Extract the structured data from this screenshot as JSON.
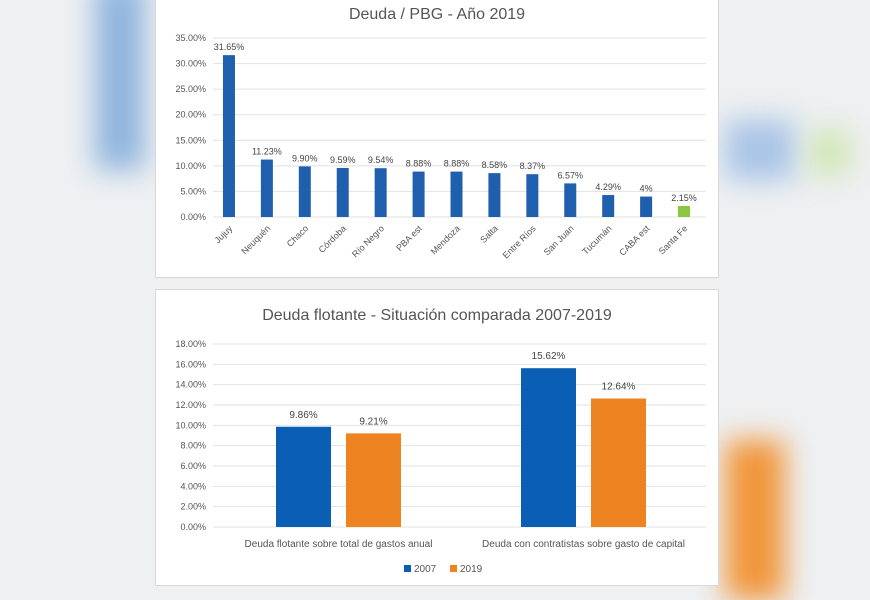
{
  "chart_data": [
    {
      "type": "bar",
      "title": "Deuda / PBG - Año 2019",
      "categories": [
        "Jujuy",
        "Neuquén",
        "Chaco",
        "Córdoba",
        "Río Negro",
        "PBA est",
        "Mendoza",
        "Salta",
        "Entre Ríos",
        "San Juan",
        "Tucumán",
        "CABA est",
        "Santa Fe"
      ],
      "values": [
        31.65,
        11.23,
        9.9,
        9.59,
        9.54,
        8.88,
        8.88,
        8.58,
        8.37,
        6.57,
        4.29,
        4.0,
        2.15
      ],
      "data_labels": [
        "31.65%",
        "11.23%",
        "9.90%",
        "9.59%",
        "9.54%",
        "8.88%",
        "8.88%",
        "8.58%",
        "8.37%",
        "6.57%",
        "4.29%",
        "4%",
        "2.15%"
      ],
      "colors": [
        "#1f5fad",
        "#1f5fad",
        "#1f5fad",
        "#1f5fad",
        "#1f5fad",
        "#1f5fad",
        "#1f5fad",
        "#1f5fad",
        "#1f5fad",
        "#1f5fad",
        "#1f5fad",
        "#1f5fad",
        "#8cc63e"
      ],
      "yticks": [
        "0.00%",
        "5.00%",
        "10.00%",
        "15.00%",
        "20.00%",
        "25.00%",
        "30.00%",
        "35.00%"
      ],
      "ylim": [
        0,
        35
      ],
      "xlabel": "",
      "ylabel": "",
      "grid": true
    },
    {
      "type": "bar",
      "title": "Deuda flotante - Situación comparada 2007-2019",
      "categories": [
        "Deuda flotante sobre total de gastos anual",
        "Deuda con contratistas sobre gasto de capital"
      ],
      "series": [
        {
          "name": "2007",
          "values": [
            9.86,
            15.62
          ],
          "labels": [
            "9.86%",
            "15.62%"
          ],
          "color": "#0a5fb4"
        },
        {
          "name": "2019",
          "values": [
            9.21,
            12.64
          ],
          "labels": [
            "9.21%",
            "12.64%"
          ],
          "color": "#ee8322"
        }
      ],
      "yticks": [
        "0.00%",
        "2.00%",
        "4.00%",
        "6.00%",
        "8.00%",
        "10.00%",
        "12.00%",
        "14.00%",
        "16.00%",
        "18.00%"
      ],
      "ylim": [
        0,
        18
      ],
      "legend": "bottom",
      "grid": true
    }
  ]
}
